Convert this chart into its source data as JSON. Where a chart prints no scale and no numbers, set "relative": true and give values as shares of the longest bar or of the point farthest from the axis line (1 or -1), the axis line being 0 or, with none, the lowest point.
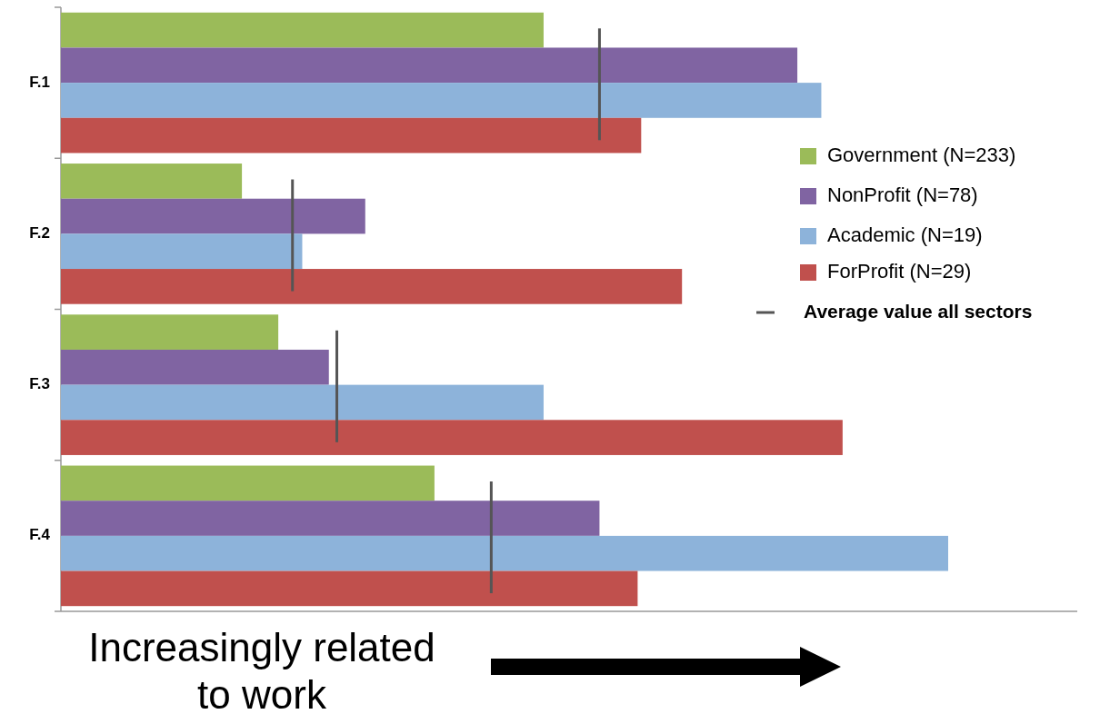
{
  "chart_data": {
    "type": "bar",
    "orientation": "horizontal",
    "relative": true,
    "xlabel": "Increasingly related to work",
    "categories": [
      "F.1",
      "F.2",
      "F.3",
      "F.4"
    ],
    "legend": "right",
    "series": [
      {
        "name": "Government (N=233)",
        "color": "#9bbb59",
        "values": [
          0.544,
          0.204,
          0.245,
          0.421
        ]
      },
      {
        "name": "NonProfit (N=78)",
        "color": "#8064a2",
        "values": [
          0.83,
          0.343,
          0.302,
          0.607
        ]
      },
      {
        "name": "Academic (N=19)",
        "color": "#8db3da",
        "values": [
          0.857,
          0.272,
          0.544,
          1
        ]
      },
      {
        "name": "ForProfit (N=29)",
        "color": "#c0504d",
        "values": [
          0.654,
          0.7,
          0.881,
          0.65
        ]
      }
    ],
    "ref_lines": [
      {
        "axis": "x",
        "value": 0.607,
        "label": "Average value all sectors",
        "color": "#555555"
      },
      {
        "axis": "x",
        "value": 0.261,
        "color": "#555555"
      },
      {
        "axis": "x",
        "value": 0.311,
        "color": "#555555"
      },
      {
        "axis": "x",
        "value": 0.485,
        "color": "#555555"
      }
    ]
  }
}
